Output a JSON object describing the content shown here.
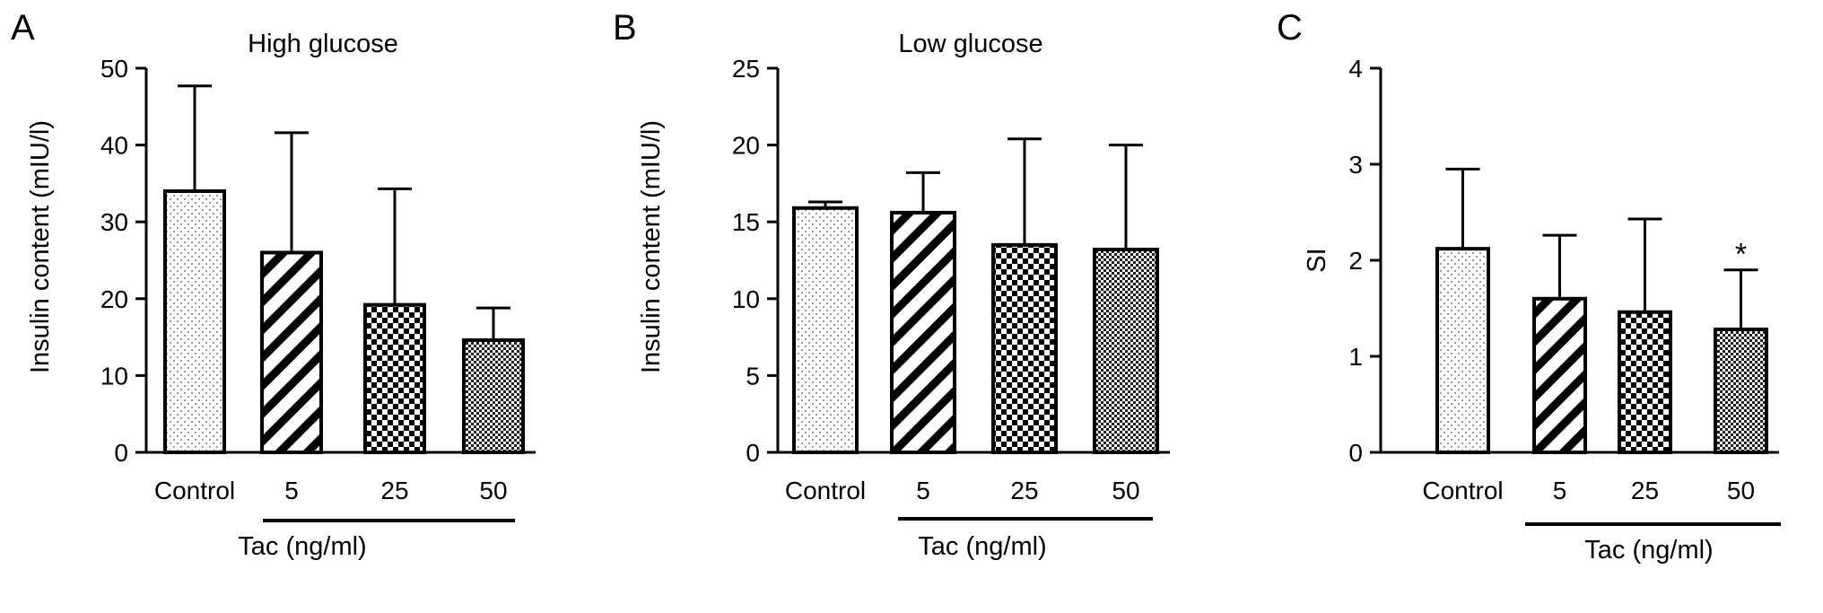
{
  "figure": {
    "background": "#ffffff",
    "colors": {
      "ink": "#000000",
      "bar_fill": "#ffffff"
    }
  },
  "chart_data": [
    {
      "type": "bar",
      "panel": "A",
      "title": "High glucose",
      "ylabel": "Insulin content (mIU/l)",
      "xlabel": "",
      "group_label": "Tac (ng/ml)",
      "group_covers": [
        "5",
        "25",
        "50"
      ],
      "categories": [
        "Control",
        "5",
        "25",
        "50"
      ],
      "values": [
        34,
        26,
        19.2,
        14.6
      ],
      "error_upper": [
        47.7,
        41.6,
        34.3,
        18.8
      ],
      "patterns": [
        "dots",
        "diagonal-stripes",
        "checker-coarse",
        "checker-fine"
      ],
      "ylim": [
        0,
        50
      ],
      "yticks": [
        0,
        10,
        20,
        30,
        40,
        50
      ],
      "annotations": [],
      "grid": false
    },
    {
      "type": "bar",
      "panel": "B",
      "title": "Low glucose",
      "ylabel": "Insulin content (mIU/l)",
      "xlabel": "",
      "group_label": "Tac (ng/ml)",
      "group_covers": [
        "5",
        "25",
        "50"
      ],
      "categories": [
        "Control",
        "5",
        "25",
        "50"
      ],
      "values": [
        15.9,
        15.6,
        13.5,
        13.2
      ],
      "error_upper": [
        16.3,
        18.2,
        20.4,
        20.0
      ],
      "patterns": [
        "dots",
        "diagonal-stripes",
        "checker-coarse",
        "checker-fine"
      ],
      "ylim": [
        0,
        25
      ],
      "yticks": [
        0,
        5,
        10,
        15,
        20,
        25
      ],
      "annotations": [],
      "grid": false
    },
    {
      "type": "bar",
      "panel": "C",
      "title": "",
      "ylabel": "SI",
      "xlabel": "",
      "group_label": "Tac (ng/ml)",
      "group_covers": [
        "5",
        "25",
        "50"
      ],
      "categories": [
        "Control",
        "5",
        "25",
        "50"
      ],
      "values": [
        2.12,
        1.6,
        1.46,
        1.28
      ],
      "error_upper": [
        2.95,
        2.26,
        2.43,
        1.9
      ],
      "patterns": [
        "dots",
        "diagonal-stripes",
        "checker-coarse",
        "checker-fine"
      ],
      "ylim": [
        0,
        4
      ],
      "yticks": [
        0,
        1,
        2,
        3,
        4
      ],
      "annotations": [
        {
          "category": "50",
          "text": "*"
        }
      ],
      "grid": false
    }
  ]
}
